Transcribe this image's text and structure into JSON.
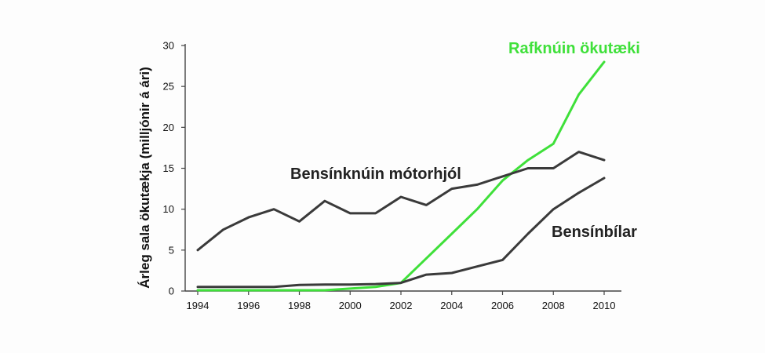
{
  "chart_data": {
    "type": "line",
    "title": "",
    "xlabel": "",
    "ylabel": "Árleg sala ökutækja (milljónir á ári)",
    "xlim": [
      1994,
      2010
    ],
    "ylim": [
      0,
      30
    ],
    "x_ticks": [
      1994,
      1996,
      1998,
      2000,
      2002,
      2004,
      2006,
      2008,
      2010
    ],
    "y_ticks": [
      0,
      5,
      10,
      15,
      20,
      25,
      30
    ],
    "grid": false,
    "legend": "none",
    "x": [
      1994,
      1995,
      1996,
      1997,
      1998,
      1999,
      2000,
      2001,
      2002,
      2003,
      2004,
      2005,
      2006,
      2007,
      2008,
      2009,
      2010
    ],
    "series": [
      {
        "name": "Rafknúin ökutæki",
        "color": "#3fe03a",
        "values": [
          0.1,
          0.1,
          0.1,
          0.1,
          0.1,
          0.1,
          0.3,
          0.5,
          1.0,
          4.0,
          7.0,
          10.0,
          13.5,
          16.0,
          18.0,
          24.0,
          28.0
        ]
      },
      {
        "name": "Bensínknúin mótorhjól",
        "color": "#3a3a3a",
        "values": [
          5.0,
          7.5,
          9.0,
          10.0,
          8.5,
          11.0,
          9.5,
          9.5,
          11.5,
          10.5,
          12.5,
          13.0,
          14.0,
          15.0,
          15.0,
          17.0,
          16.0
        ]
      },
      {
        "name": "Bensínbílar",
        "color": "#3a3a3a",
        "values": [
          0.5,
          0.5,
          0.5,
          0.5,
          0.75,
          0.8,
          0.8,
          0.85,
          1.0,
          2.0,
          2.2,
          3.0,
          3.8,
          7.0,
          10.0,
          12.0,
          13.8
        ]
      }
    ]
  }
}
